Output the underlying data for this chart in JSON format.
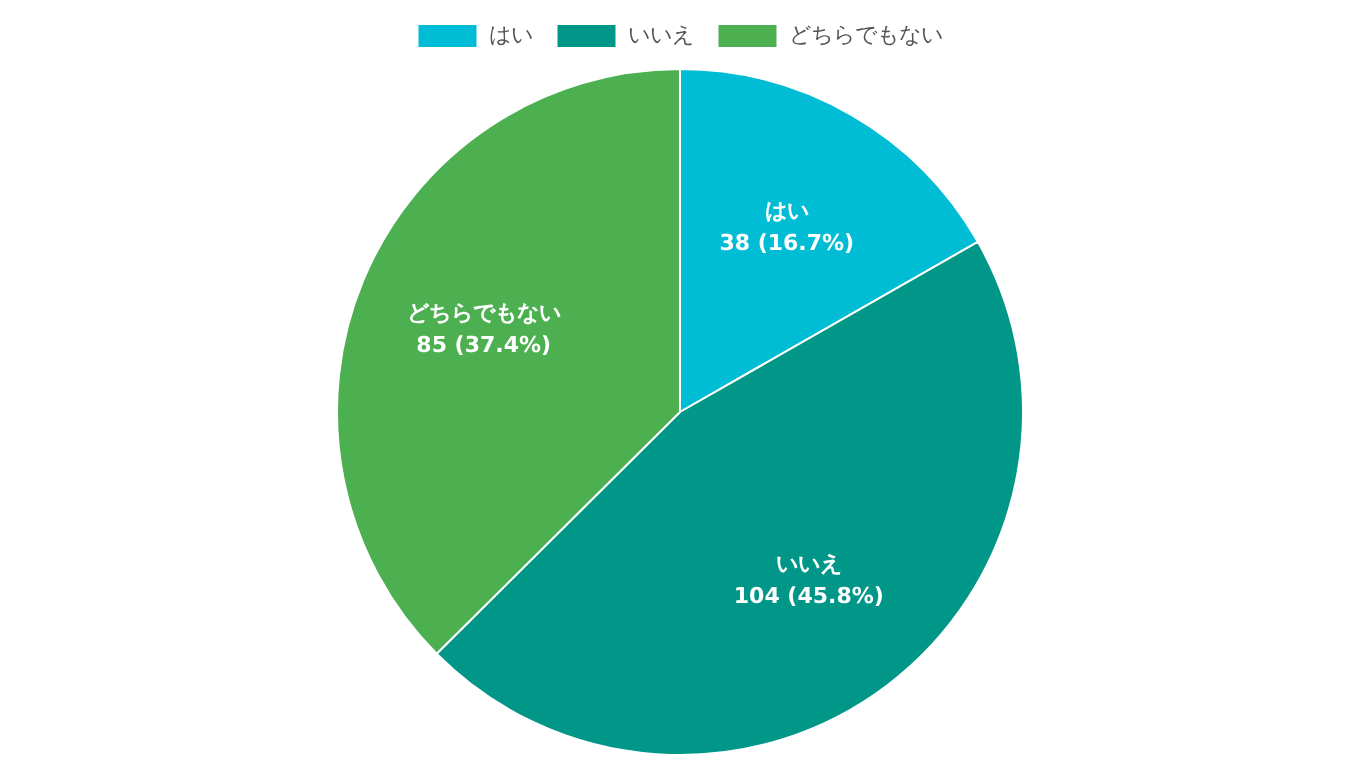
{
  "chart_data": {
    "type": "pie",
    "categories": [
      "はい",
      "いいえ",
      "どちらでもない"
    ],
    "values": [
      38,
      104,
      85
    ],
    "colors": [
      "#00bcd4",
      "#009688",
      "#4caf50"
    ],
    "value_labels": [
      "38 (16.7%)",
      "104 (45.8%)",
      "85 (37.4%)"
    ],
    "legend": "top"
  }
}
